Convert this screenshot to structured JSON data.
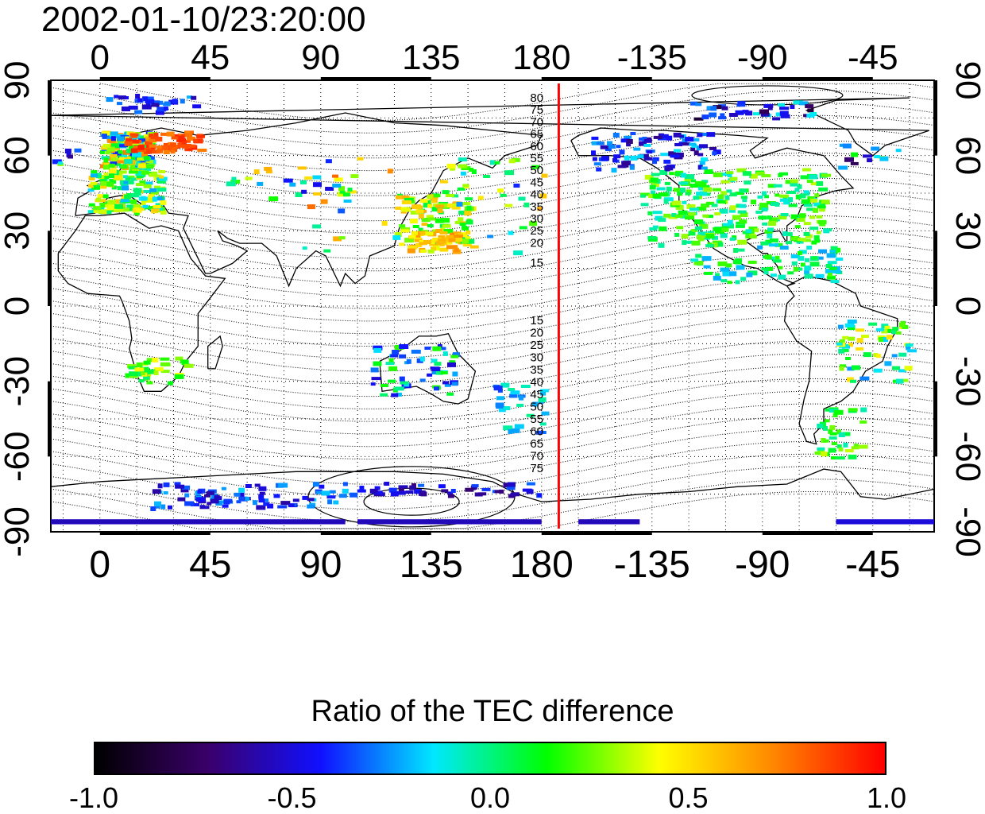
{
  "title": "2002-01-10/23:20:00",
  "lon_top_ticks": [
    "0",
    "45",
    "90",
    "135",
    "180",
    "-135",
    "-90",
    "-45"
  ],
  "lon_bottom_ticks": [
    "0",
    "45",
    "90",
    "135",
    "180",
    "-135",
    "-90",
    "-45"
  ],
  "lon_tick_values": [
    0,
    45,
    90,
    135,
    180,
    225,
    270,
    315
  ],
  "lat_left_ticks": [
    "90",
    "60",
    "30",
    "0",
    "-30",
    "-60",
    "-90"
  ],
  "lat_right_ticks": [
    "90",
    "60",
    "30",
    "0",
    "-30",
    "-60",
    "-90"
  ],
  "lat_tick_values": [
    90,
    60,
    30,
    0,
    -30,
    -60,
    -90
  ],
  "map": {
    "lon_range": [
      -20,
      340
    ],
    "lat_range": [
      -90,
      90
    ],
    "meridian_line_lon": 187,
    "meridian_line_color": "#ff0000",
    "north_contour_labels": [
      "80",
      "75",
      "70",
      "65",
      "60",
      "55",
      "50",
      "45",
      "40",
      "35",
      "30",
      "25",
      "20",
      "15"
    ],
    "south_contour_labels": [
      "15",
      "20",
      "25",
      "30",
      "35",
      "40",
      "45",
      "50",
      "55",
      "60",
      "65",
      "70",
      "75"
    ]
  },
  "colorbar": {
    "title": "Ratio of the TEC difference",
    "min": -1.0,
    "max": 1.0,
    "tick_labels": [
      "-1.0",
      "-0.5",
      "0.0",
      "0.5",
      "1.0"
    ],
    "tick_values": [
      -1.0,
      -0.5,
      0.0,
      0.5,
      1.0
    ],
    "colors": [
      "#000000",
      "#3a006a",
      "#1010ff",
      "#00e8ff",
      "#00ff00",
      "#ffff00",
      "#ff8800",
      "#ff0000"
    ]
  }
}
